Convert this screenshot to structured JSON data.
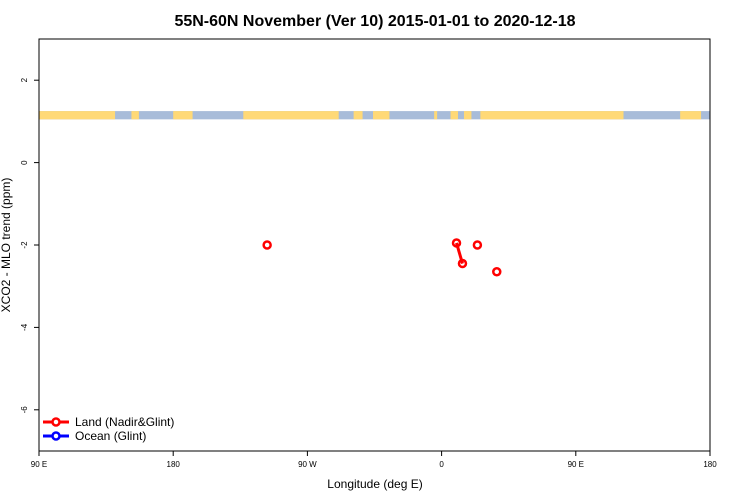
{
  "chart_data": {
    "type": "scatter",
    "title": "55N-60N November (Ver 10)   2015-01-01 to 2020-12-18",
    "xlabel": "Longitude (deg E)",
    "ylabel": "XCO2 - MLO trend (ppm)",
    "xlim": [
      90,
      540
    ],
    "ylim": [
      -7,
      3
    ],
    "x_ticks": [
      {
        "value": 90,
        "label": "90 E"
      },
      {
        "value": 180,
        "label": "180"
      },
      {
        "value": 270,
        "label": "90 W"
      },
      {
        "value": 360,
        "label": "0"
      },
      {
        "value": 450,
        "label": "90 E"
      },
      {
        "value": 540,
        "label": "180"
      }
    ],
    "y_ticks": [
      {
        "value": 2,
        "label": "2"
      },
      {
        "value": 0,
        "label": "0"
      },
      {
        "value": -2,
        "label": "-2"
      },
      {
        "value": -4,
        "label": "-4"
      },
      {
        "value": -6,
        "label": "-6"
      }
    ],
    "land_mask": {
      "y_range": [
        1.05,
        1.25
      ],
      "land_color": "#FFD977",
      "ocean_color": "#A8BCD9",
      "land_segments": [
        [
          90,
          141
        ],
        [
          152,
          157
        ],
        [
          180,
          193
        ],
        [
          227,
          291
        ],
        [
          301,
          307
        ],
        [
          314,
          325
        ],
        [
          355,
          357
        ],
        [
          366,
          371
        ],
        [
          375,
          380
        ],
        [
          386,
          482
        ],
        [
          520,
          534
        ]
      ]
    },
    "series": [
      {
        "name": "Land (Nadir&Glint)",
        "color": "#FF0000",
        "points": [
          {
            "x": 243,
            "y": -2.0
          },
          {
            "x": 370,
            "y": -1.95
          },
          {
            "x": 374,
            "y": -2.45
          },
          {
            "x": 384,
            "y": -2.0
          },
          {
            "x": 397,
            "y": -2.65
          }
        ],
        "line_segments": [
          [
            1,
            2
          ]
        ]
      },
      {
        "name": "Ocean (Glint)",
        "color": "#0000FF",
        "points": []
      }
    ],
    "legend_position": "bottom-left",
    "grid": false
  }
}
